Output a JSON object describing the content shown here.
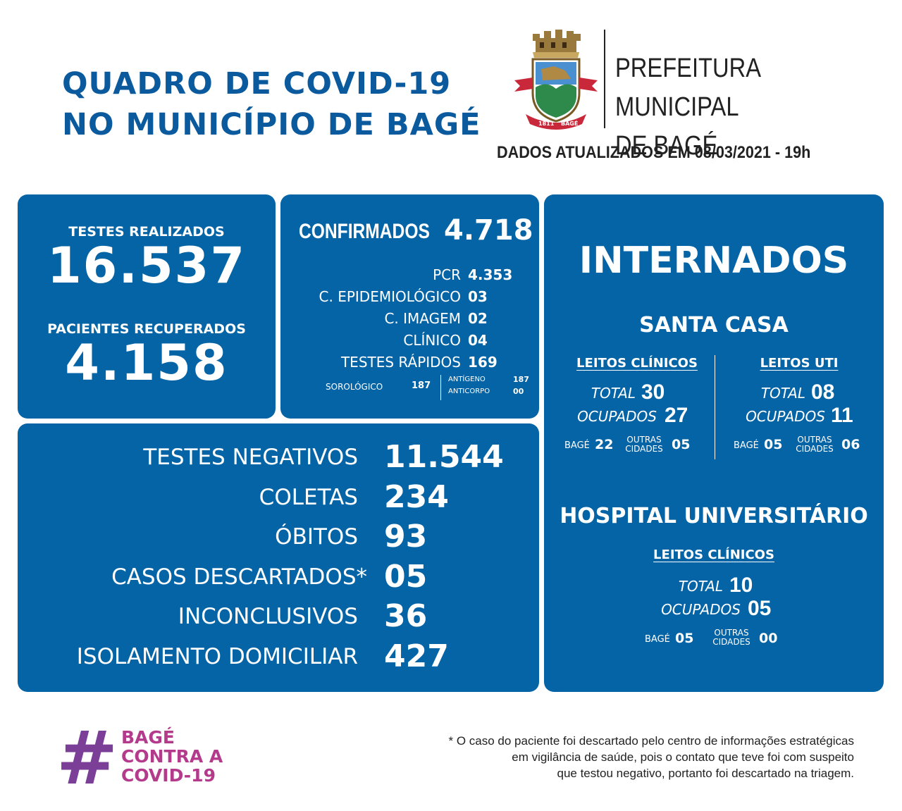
{
  "header": {
    "title_line1": "QUADRO DE COVID-19",
    "title_line2": "NO MUNICÍPIO DE BAGÉ",
    "org_line1": "PREFEITURA MUNICIPAL",
    "org_line2": "DE BAGÉ",
    "updated": "DADOS ATUALIZADOS EM 08/03/2021 - 19h",
    "crest_years": "1811",
    "crest_name": "BAGÉ"
  },
  "summary": {
    "tests_label": "TESTES REALIZADOS",
    "tests_value": "16.537",
    "recovered_label": "PACIENTES RECUPERADOS",
    "recovered_value": "4.158"
  },
  "confirmed": {
    "label": "CONFIRMADOS",
    "value": "4.718",
    "rows": [
      {
        "label": "PCR",
        "value": "4.353"
      },
      {
        "label": "C. EPIDEMIOLÓGICO",
        "value": "03"
      },
      {
        "label": "C. IMAGEM",
        "value": "02"
      },
      {
        "label": "CLÍNICO",
        "value": "04"
      },
      {
        "label": "TESTES RÁPIDOS",
        "value": "169"
      }
    ],
    "sorologico_label": "SOROLÓGICO",
    "sorologico_value": "187",
    "antigeno_label": "ANTÍGENO",
    "antigeno_value": "187",
    "anticorpo_label": "ANTICORPO",
    "anticorpo_value": "00"
  },
  "stats": [
    {
      "label": "TESTES NEGATIVOS",
      "value": "11.544"
    },
    {
      "label": "COLETAS",
      "value": "234"
    },
    {
      "label": "ÓBITOS",
      "value": "93"
    },
    {
      "label": "CASOS DESCARTADOS*",
      "value": "05"
    },
    {
      "label": "INCONCLUSIVOS",
      "value": "36"
    },
    {
      "label": "ISOLAMENTO DOMICILIAR",
      "value": "427"
    }
  ],
  "internados": {
    "title": "INTERNADOS",
    "santa_casa": {
      "title": "SANTA CASA",
      "clinicos": {
        "title": "LEITOS CLÍNICOS",
        "total_label": "TOTAL",
        "total_value": "30",
        "ocupados_label": "OCUPADOS",
        "ocupados_value": "27",
        "bage_label": "BAGÉ",
        "bage_value": "22",
        "outras_label1": "OUTRAS",
        "outras_label2": "CIDADES",
        "outras_value": "05"
      },
      "uti": {
        "title": "LEITOS UTI",
        "total_label": "TOTAL",
        "total_value": "08",
        "ocupados_label": "OCUPADOS",
        "ocupados_value": "11",
        "bage_label": "BAGÉ",
        "bage_value": "05",
        "outras_label1": "OUTRAS",
        "outras_label2": "CIDADES",
        "outras_value": "06"
      }
    },
    "hu": {
      "title": "HOSPITAL UNIVERSITÁRIO",
      "clinicos": {
        "title": "LEITOS CLÍNICOS",
        "total_label": "TOTAL",
        "total_value": "10",
        "ocupados_label": "OCUPADOS",
        "ocupados_value": "05",
        "bage_label": "BAGÉ",
        "bage_value": "05",
        "outras_label1": "OUTRAS",
        "outras_label2": "CIDADES",
        "outras_value": "00"
      }
    }
  },
  "footer": {
    "hashtag_symbol": "#",
    "hashtag_line1": "BAGÉ",
    "hashtag_line2": "CONTRA A",
    "hashtag_line3": "COVID-19",
    "note_line1": "* O caso do paciente foi descartado pelo centro de informações estratégicas",
    "note_line2": "em vigilância de saúde, pois o contato que teve foi com suspeito",
    "note_line3": "que testou negativo, portanto foi descartado na triagem.",
    "colors": {
      "hashtag_purple": "#7b3f98",
      "hashtag_pink": "#b43a8c",
      "brand_blue": "#0564a6"
    }
  }
}
